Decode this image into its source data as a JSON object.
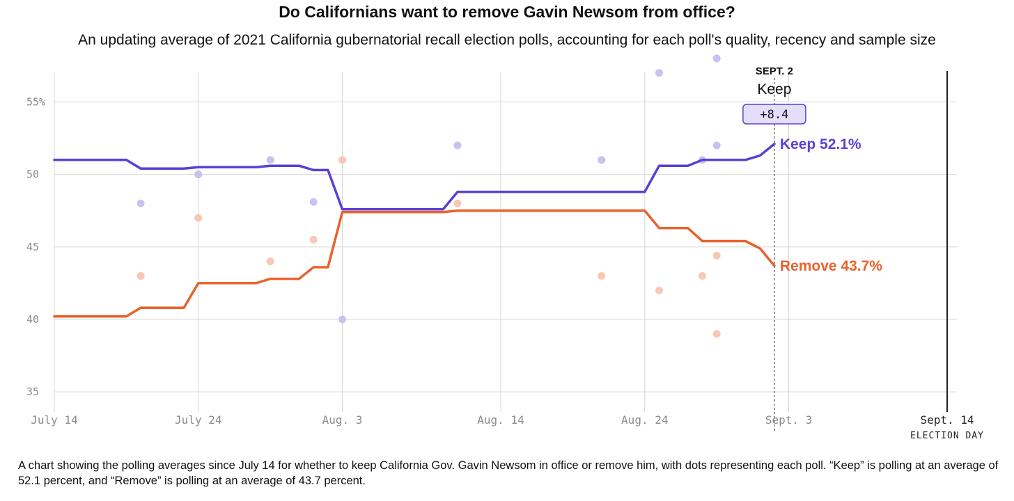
{
  "chart_data": {
    "type": "line",
    "title": "Do Californians want to remove Gavin Newsom from office?",
    "subtitle": "An updating average of 2021 California gubernatorial recall election polls, accounting for each poll's quality, recency and sample size",
    "caption": "A chart showing the polling averages since July 14 for whether to keep California Gov. Gavin Newsom in office or remove him, with dots representing each poll. “Keep” is polling at an average of 52.1 percent, and “Remove” is polling at an average of 43.7 percent.",
    "xlim": [
      "2021-07-14",
      "2021-09-14"
    ],
    "ylim": [
      34,
      58
    ],
    "grid": true,
    "y_ticks": [
      {
        "value": 55,
        "label": "55%"
      },
      {
        "value": 50,
        "label": "50"
      },
      {
        "value": 45,
        "label": "45"
      },
      {
        "value": 40,
        "label": "40"
      },
      {
        "value": 35,
        "label": "35"
      }
    ],
    "x_ticks": [
      {
        "date": "2021-07-14",
        "label": "July 14"
      },
      {
        "date": "2021-07-24",
        "label": "July 24"
      },
      {
        "date": "2021-08-03",
        "label": "Aug. 3"
      },
      {
        "date": "2021-08-14",
        "label": "Aug. 14"
      },
      {
        "date": "2021-08-24",
        "label": "Aug. 24"
      },
      {
        "date": "2021-09-03",
        "label": "Sept. 3"
      },
      {
        "date": "2021-09-14",
        "label": "Sept. 14",
        "sublabel": "ELECTION DAY",
        "emphasis": true
      }
    ],
    "annotation": {
      "date": "2021-09-02",
      "date_label": "SEPT. 2",
      "leader": "Keep",
      "margin": "+8.4"
    },
    "series": [
      {
        "name": "Keep",
        "color": "#5b3fd6",
        "dot_color": "#c9c1ef",
        "end_label": "Keep 52.1%",
        "values": [
          {
            "x": "2021-07-14",
            "y": 51.0
          },
          {
            "x": "2021-07-19",
            "y": 51.0
          },
          {
            "x": "2021-07-20",
            "y": 50.4
          },
          {
            "x": "2021-07-23",
            "y": 50.4
          },
          {
            "x": "2021-07-24",
            "y": 50.5
          },
          {
            "x": "2021-07-28",
            "y": 50.5
          },
          {
            "x": "2021-07-29",
            "y": 50.6
          },
          {
            "x": "2021-07-31",
            "y": 50.6
          },
          {
            "x": "2021-08-01",
            "y": 50.3
          },
          {
            "x": "2021-08-02",
            "y": 50.3
          },
          {
            "x": "2021-08-03",
            "y": 47.6
          },
          {
            "x": "2021-08-10",
            "y": 47.6
          },
          {
            "x": "2021-08-11",
            "y": 48.8
          },
          {
            "x": "2021-08-24",
            "y": 48.8
          },
          {
            "x": "2021-08-25",
            "y": 50.6
          },
          {
            "x": "2021-08-27",
            "y": 50.6
          },
          {
            "x": "2021-08-28",
            "y": 51.0
          },
          {
            "x": "2021-08-31",
            "y": 51.0
          },
          {
            "x": "2021-09-01",
            "y": 51.3
          },
          {
            "x": "2021-09-02",
            "y": 52.1
          }
        ],
        "polls": [
          {
            "x": "2021-07-20",
            "y": 48
          },
          {
            "x": "2021-07-24",
            "y": 50
          },
          {
            "x": "2021-07-29",
            "y": 51
          },
          {
            "x": "2021-08-01",
            "y": 48.1
          },
          {
            "x": "2021-08-03",
            "y": 40
          },
          {
            "x": "2021-08-11",
            "y": 52
          },
          {
            "x": "2021-08-21",
            "y": 51
          },
          {
            "x": "2021-08-25",
            "y": 57
          },
          {
            "x": "2021-08-28",
            "y": 51
          },
          {
            "x": "2021-08-29",
            "y": 58
          },
          {
            "x": "2021-08-29",
            "y": 52
          }
        ]
      },
      {
        "name": "Remove",
        "color": "#e8612c",
        "dot_color": "#f8c8b5",
        "end_label": "Remove 43.7%",
        "values": [
          {
            "x": "2021-07-14",
            "y": 40.2
          },
          {
            "x": "2021-07-19",
            "y": 40.2
          },
          {
            "x": "2021-07-20",
            "y": 40.8
          },
          {
            "x": "2021-07-23",
            "y": 40.8
          },
          {
            "x": "2021-07-24",
            "y": 42.5
          },
          {
            "x": "2021-07-28",
            "y": 42.5
          },
          {
            "x": "2021-07-29",
            "y": 42.8
          },
          {
            "x": "2021-07-31",
            "y": 42.8
          },
          {
            "x": "2021-08-01",
            "y": 43.6
          },
          {
            "x": "2021-08-02",
            "y": 43.6
          },
          {
            "x": "2021-08-03",
            "y": 47.4
          },
          {
            "x": "2021-08-10",
            "y": 47.4
          },
          {
            "x": "2021-08-11",
            "y": 47.5
          },
          {
            "x": "2021-08-24",
            "y": 47.5
          },
          {
            "x": "2021-08-25",
            "y": 46.3
          },
          {
            "x": "2021-08-27",
            "y": 46.3
          },
          {
            "x": "2021-08-28",
            "y": 45.4
          },
          {
            "x": "2021-08-31",
            "y": 45.4
          },
          {
            "x": "2021-09-01",
            "y": 44.9
          },
          {
            "x": "2021-09-02",
            "y": 43.7
          }
        ],
        "polls": [
          {
            "x": "2021-07-20",
            "y": 43
          },
          {
            "x": "2021-07-24",
            "y": 47
          },
          {
            "x": "2021-07-29",
            "y": 44
          },
          {
            "x": "2021-08-01",
            "y": 45.5
          },
          {
            "x": "2021-08-03",
            "y": 51
          },
          {
            "x": "2021-08-11",
            "y": 48
          },
          {
            "x": "2021-08-21",
            "y": 43
          },
          {
            "x": "2021-08-25",
            "y": 42
          },
          {
            "x": "2021-08-28",
            "y": 43
          },
          {
            "x": "2021-08-29",
            "y": 44.4
          },
          {
            "x": "2021-08-29",
            "y": 39
          }
        ]
      }
    ]
  }
}
